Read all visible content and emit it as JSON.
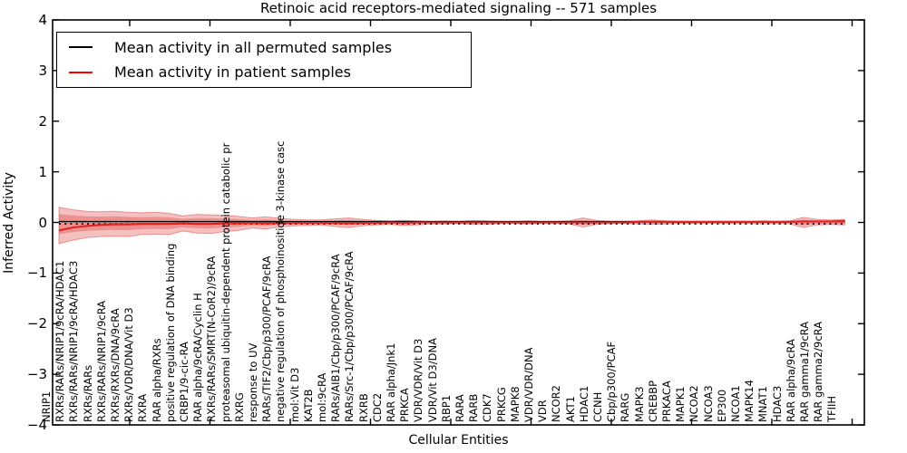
{
  "title": "Retinoic acid receptors-mediated signaling -- 571 samples",
  "legend": {
    "items": [
      {
        "label": "Mean activity in all permuted samples",
        "color": "#000000"
      },
      {
        "label": "Mean activity in patient samples",
        "color": "#ff0000"
      }
    ]
  },
  "chart_data": {
    "type": "line",
    "title": "Retinoic acid receptors-mediated signaling -- 571 samples",
    "xlabel": "Cellular Entities",
    "ylabel": "Inferred Activity",
    "ylim": [
      -4,
      4
    ],
    "yticks": [
      4,
      3,
      2,
      1,
      0,
      -1,
      -2,
      -3,
      -4
    ],
    "grid": false,
    "legend_position": "upper left",
    "categories": [
      "NRIP1",
      "RXRs/RARs/NRIP1/9cRA/HDAC1",
      "RXRs/RARs/NRIP1/9cRA/HDAC3",
      "RXRs/RARs",
      "RXRs/RARs/NRIP1/9cRA",
      "RXRs/RXRs/DNA/9cRA",
      "RXRs/VDR/DNA/Vit D3",
      "RXRA",
      "RAR alpha/RXRs",
      "positive regulation of DNA binding",
      "CRBP1/9-cic-RA",
      "RAR alpha/9cRA/Cyclin H",
      "RXRs/RARs/SMRT(N-CoR2)/9cRA",
      "proteasomal ubiquitin-dependent protein catabolic pr",
      "RXRG",
      "response to UV",
      "RARs/TIF2/Cbp/p300/PCAF/9cRA",
      "negative regulation of phosphoinositide 3-kinase casc",
      "mol:Vit D3",
      "KAT2B",
      "mol:9cRA",
      "RARs/AIB1/Cbp/p300/PCAF/9cRA",
      "RARs/Src-1/Cbp/p300/PCAF/9cRA",
      "RXRB",
      "CDC2",
      "RAR alpha/Jnk1",
      "PRKCA",
      "VDR/VDR/Vit D3",
      "VDR/Vit D3/DNA",
      "RBP1",
      "RARA",
      "RARB",
      "CDK7",
      "PRKCG",
      "MAPK8",
      "VDR/VDR/DNA",
      "VDR",
      "NCOR2",
      "AKT1",
      "HDAC1",
      "CCNH",
      "Cbp/p300/PCAF",
      "RARG",
      "MAPK3",
      "CREBBP",
      "PRKACA",
      "MAPK1",
      "NCOA2",
      "NCOA3",
      "EP300",
      "NCOA1",
      "MAPK14",
      "MNAT1",
      "HDAC3",
      "RAR alpha/9cRA",
      "RAR gamma1/9cRA",
      "RAR gamma2/9cRA",
      "TFIIH"
    ],
    "series": [
      {
        "name": "Mean activity in all permuted samples",
        "color": "#000000",
        "style": "solid-with-dotted",
        "constant": 0
      },
      {
        "name": "Mean activity in patient samples",
        "color": "#e02222",
        "style": "solid",
        "values": [
          -0.16,
          -0.1,
          -0.07,
          -0.05,
          -0.04,
          -0.04,
          -0.03,
          -0.03,
          -0.03,
          -0.02,
          -0.03,
          -0.03,
          -0.02,
          -0.02,
          -0.01,
          -0.02,
          -0.01,
          -0.01,
          -0.01,
          -0.01,
          -0.01,
          -0.02,
          -0.01,
          -0.01,
          0,
          -0.01,
          0,
          0,
          0,
          0,
          0,
          0,
          0,
          0,
          0,
          0,
          0,
          0,
          0,
          0,
          0,
          0,
          0.01,
          0.01,
          0.01,
          0.01,
          0.01,
          0.01,
          0.01,
          0.01,
          0.01,
          0.01,
          0.01,
          0.01,
          0.02,
          0.02,
          0.02,
          0.03
        ]
      }
    ],
    "band": {
      "name": "patient-sample activity spread",
      "color": "#dc3232",
      "upper": [
        0.3,
        0.25,
        0.22,
        0.21,
        0.22,
        0.2,
        0.19,
        0.2,
        0.18,
        0.13,
        0.16,
        0.15,
        0.14,
        0.12,
        0.09,
        0.11,
        0.08,
        0.06,
        0.05,
        0.05,
        0.07,
        0.09,
        0.06,
        0.04,
        0.03,
        0.04,
        0.03,
        0.02,
        0.03,
        0.02,
        0.04,
        0.03,
        0.02,
        0.02,
        0.03,
        0.02,
        0.02,
        0.03,
        0.09,
        0.04,
        0.02,
        0.02,
        0.03,
        0.05,
        0.03,
        0.02,
        0.02,
        0.02,
        0.02,
        0.02,
        0.02,
        0.03,
        0.02,
        0.03,
        0.1,
        0.06,
        0.05,
        0.06
      ],
      "lower": [
        -0.42,
        -0.35,
        -0.3,
        -0.28,
        -0.27,
        -0.28,
        -0.24,
        -0.23,
        -0.24,
        -0.17,
        -0.21,
        -0.22,
        -0.18,
        -0.16,
        -0.11,
        -0.13,
        -0.09,
        -0.07,
        -0.06,
        -0.05,
        -0.08,
        -0.1,
        -0.07,
        -0.05,
        -0.04,
        -0.06,
        -0.05,
        -0.03,
        -0.03,
        -0.02,
        -0.04,
        -0.04,
        -0.02,
        -0.02,
        -0.03,
        -0.02,
        -0.02,
        -0.03,
        -0.09,
        -0.04,
        -0.02,
        -0.02,
        -0.03,
        -0.04,
        -0.03,
        -0.02,
        -0.02,
        -0.02,
        -0.02,
        -0.02,
        -0.02,
        -0.03,
        -0.02,
        -0.03,
        -0.1,
        -0.05,
        -0.04,
        -0.05
      ]
    }
  }
}
